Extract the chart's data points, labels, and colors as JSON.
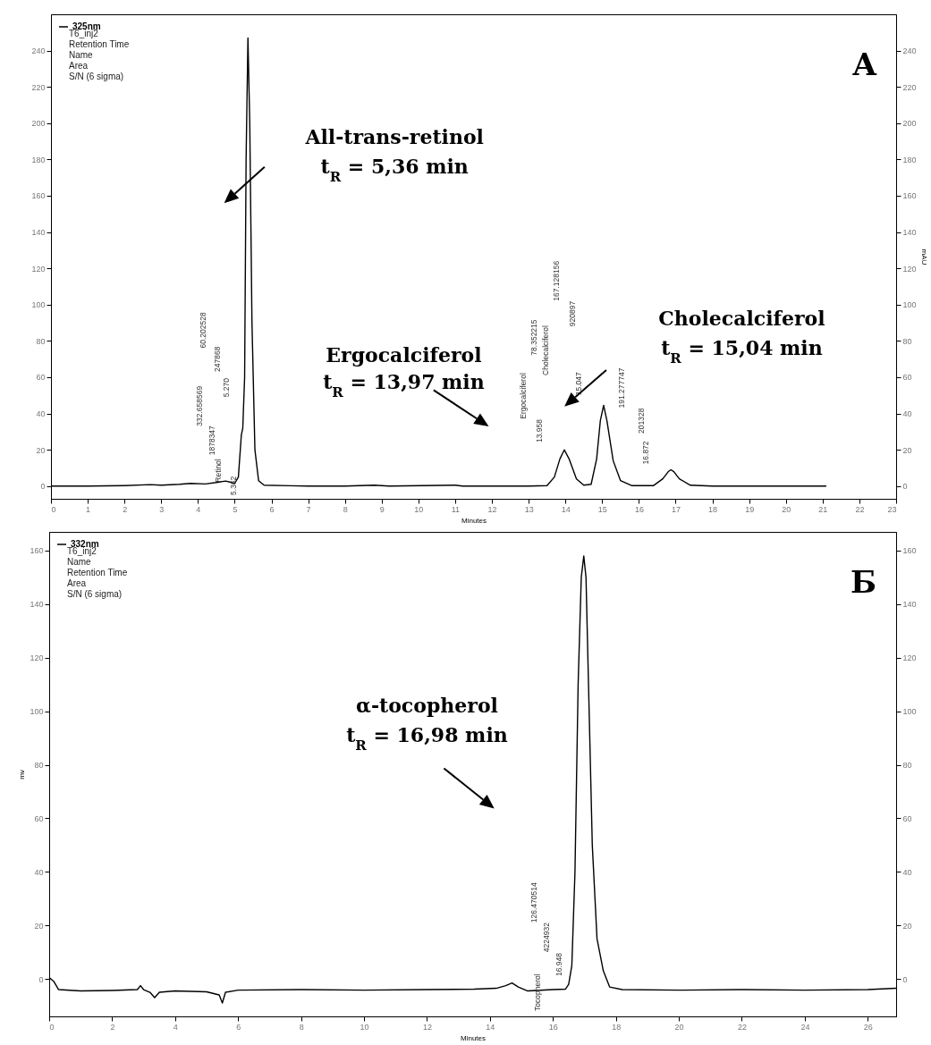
{
  "chart_data": [
    {
      "type": "line",
      "xlabel": "Minutes",
      "y2label": "mAU",
      "legend": "top left",
      "grid": false,
      "xlim": [
        0,
        23
      ],
      "xticks": [
        0,
        1,
        2,
        3,
        4,
        5,
        6,
        7,
        8,
        9,
        10,
        11,
        12,
        13,
        14,
        15,
        16,
        17,
        18,
        19,
        20,
        21,
        22,
        23
      ],
      "ylim": [
        -7,
        260
      ],
      "yticks": [
        0,
        20,
        40,
        60,
        80,
        100,
        120,
        140,
        160,
        180,
        200,
        220,
        240
      ],
      "y2lim": [
        -7,
        260
      ],
      "y2ticks": [
        0,
        20,
        40,
        60,
        80,
        100,
        120,
        140,
        160,
        180,
        200,
        220,
        240
      ],
      "x": [
        0,
        1,
        2,
        2.7,
        3,
        3.5,
        3.8,
        4.2,
        4.5,
        4.75,
        5.0,
        5.1,
        5.18,
        5.22,
        5.27,
        5.31,
        5.36,
        5.41,
        5.47,
        5.55,
        5.65,
        5.8,
        6.5,
        7,
        8,
        8.8,
        9.2,
        11,
        11.2,
        13,
        13.5,
        13.7,
        13.85,
        13.97,
        14.1,
        14.3,
        14.5,
        14.7,
        14.85,
        14.95,
        15.04,
        15.13,
        15.3,
        15.5,
        15.8,
        16.4,
        16.65,
        16.8,
        16.87,
        16.95,
        17.1,
        17.4,
        18,
        19,
        20,
        21.1
      ],
      "series": [
        {
          "name": "325nm",
          "color": "#000000",
          "values": [
            0,
            0,
            0.3,
            0.8,
            0.5,
            1,
            1.5,
            1.2,
            2,
            2.8,
            1.5,
            5,
            28,
            32,
            60,
            180,
            247,
            200,
            90,
            20,
            3,
            0.5,
            0.2,
            0,
            0,
            0.5,
            0,
            0.5,
            0,
            0,
            0.3,
            5,
            15,
            20,
            15,
            4,
            0.5,
            1,
            15,
            36,
            44.5,
            36,
            14,
            3,
            0.3,
            0.3,
            4,
            8,
            9,
            8,
            4,
            0.5,
            0,
            0,
            0,
            0
          ]
        }
      ],
      "annotations": [
        "T6_inj2",
        "Retention Time",
        "Name",
        "Area",
        "S/N (6 sigma)",
        "A",
        "All-trans-retinol",
        "t$_{R}$ = 5,36 min",
        "Ergocalciferol",
        "t$_{R}$ = 13,97 min",
        "Cholecalciferol",
        "t$_{R}$ = 15,04 min",
        "5.362",
        "Retinol",
        "1878347",
        "332.658569",
        "5.270",
        "247868",
        "60.202528",
        "Ergocalciferol",
        "13.958",
        "78.352215",
        "Cholecalciferol",
        "167.128156",
        "920897",
        "15.047",
        "191.277747",
        "201328",
        "16.872"
      ]
    },
    {
      "type": "line",
      "xlabel": "Minutes",
      "ylabel": "mv",
      "legend": "top left",
      "grid": false,
      "xlim": [
        0,
        26.9
      ],
      "xticks": [
        0,
        2,
        4,
        6,
        8,
        10,
        12,
        14,
        16,
        18,
        20,
        22,
        24,
        26
      ],
      "ylim": [
        -14,
        167
      ],
      "yticks": [
        0,
        20,
        40,
        60,
        80,
        100,
        120,
        140,
        160
      ],
      "y2lim": [
        -14,
        167
      ],
      "y2ticks": [
        0,
        20,
        40,
        60,
        80,
        100,
        120,
        140,
        160
      ],
      "x": [
        0,
        0.15,
        0.3,
        1,
        2,
        2.8,
        2.9,
        3.0,
        3.2,
        3.35,
        3.5,
        4,
        5,
        5.4,
        5.5,
        5.6,
        6,
        8,
        10,
        12,
        13.5,
        14.2,
        14.5,
        14.7,
        14.9,
        15.2,
        16,
        16.4,
        16.5,
        16.6,
        16.7,
        16.8,
        16.9,
        16.98,
        17.05,
        17.15,
        17.25,
        17.4,
        17.6,
        17.8,
        18.2,
        20,
        22,
        24,
        26,
        26.9
      ],
      "series": [
        {
          "name": "332nm",
          "color": "#000000",
          "values": [
            0.5,
            -1,
            -4,
            -4.5,
            -4.3,
            -4,
            -2.5,
            -4,
            -5,
            -7,
            -5,
            -4.5,
            -4.8,
            -6,
            -9,
            -5,
            -4.2,
            -4,
            -4.2,
            -4,
            -3.8,
            -3.5,
            -2.5,
            -1.5,
            -3,
            -4.5,
            -4,
            -3.8,
            -2,
            5,
            40,
            110,
            150,
            158,
            150,
            100,
            50,
            15,
            3,
            -3,
            -4,
            -4.2,
            -4,
            -4.2,
            -4,
            -3.5
          ]
        }
      ],
      "annotations": [
        "T6_inj2",
        "Name",
        "Retention Time",
        "Area",
        "S/N (6 sigma)",
        "Б",
        "α-tocopherol",
        "t$_{R}$ = 16,98 min",
        "126.470514",
        "4224932",
        "16.948",
        "Tocopherol"
      ]
    }
  ]
}
